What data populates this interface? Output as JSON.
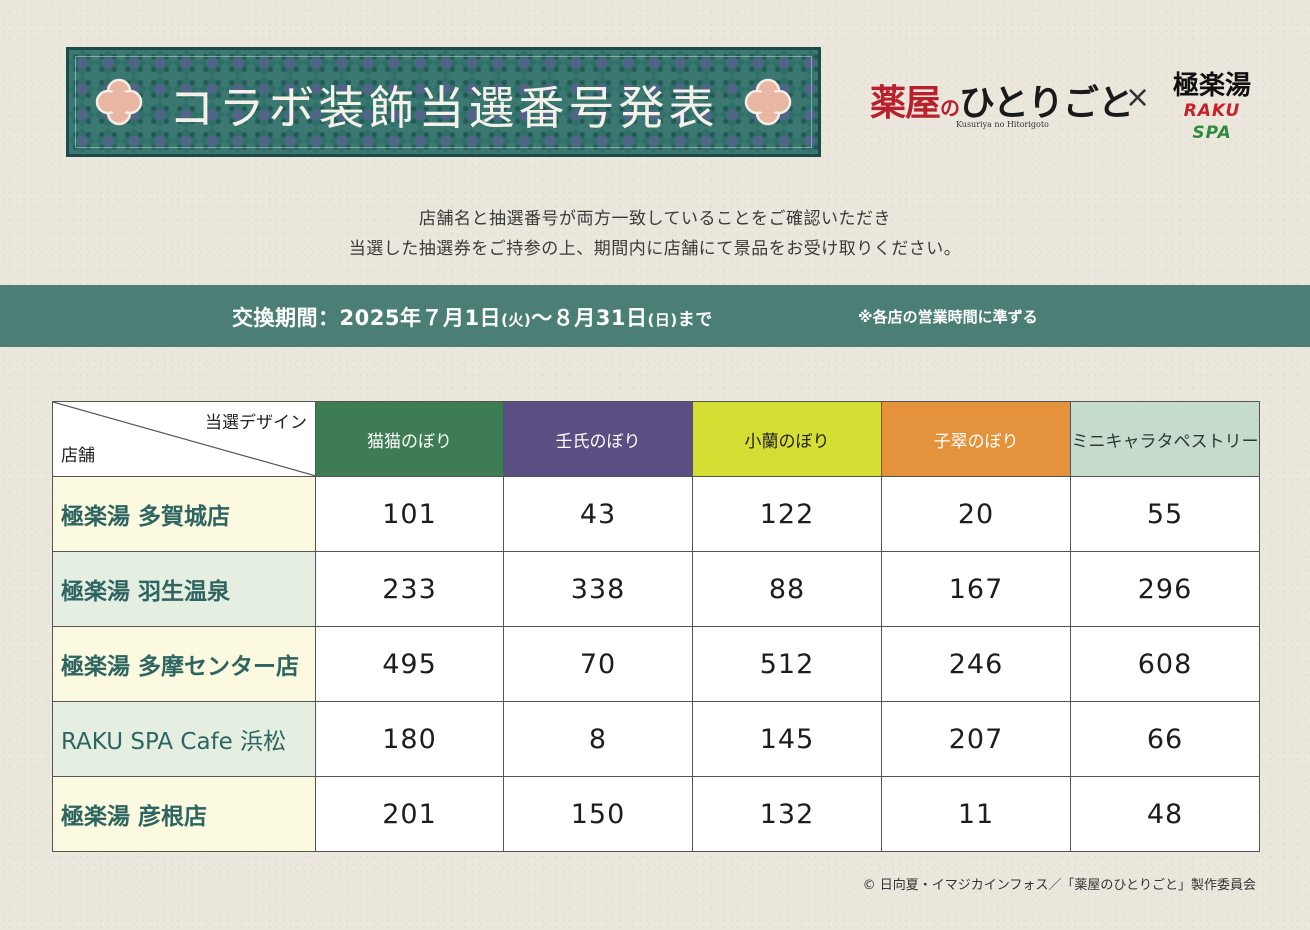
{
  "banner": {
    "title": "コラボ装飾当選番号発表"
  },
  "logos": {
    "kusuriya_title_red": "薬屋",
    "kusuriya_no": "の",
    "kusuriya_title_rest": "ひとりごと",
    "kusuriya_romaji": "Kusuriya no Hitorigoto",
    "times": "×",
    "gokurakuyu": "極楽湯",
    "raku_spa_raku": "RAKU",
    "raku_spa_spa": "SPA",
    "raku_color_red": "#c8202a",
    "raku_color_green": "#2f8a3d"
  },
  "notice": {
    "line1": "店舗名と抽選番号が両方一致していることをご確認いただき",
    "line2": "当選した抽選券をご持参の上、期間内に店舗にて景品をお受け取りください。"
  },
  "period": {
    "label": "交換期間：2025年７月1日",
    "start_day": "(火)",
    "tilde": "〜８月31日",
    "end_day": "(日)",
    "until": "まで",
    "note": "※各店の営業時間に準ずる"
  },
  "table": {
    "corner_top": "当選デザイン",
    "corner_bottom": "店舗",
    "columns": [
      "猫猫のぼり",
      "壬氏のぼり",
      "小蘭のぼり",
      "子翠のぼり",
      "ミニキャラタペストリー"
    ],
    "column_colors": [
      "#3e7d54",
      "#5a4e82",
      "#d4de33",
      "#e5923c",
      "#c5dccd"
    ],
    "rows": [
      {
        "store": "極楽湯 多賀城店",
        "values": [
          "101",
          "43",
          "122",
          "20",
          "55"
        ]
      },
      {
        "store": "極楽湯 羽生温泉",
        "values": [
          "233",
          "338",
          "88",
          "167",
          "296"
        ]
      },
      {
        "store": "極楽湯 多摩センター店",
        "values": [
          "495",
          "70",
          "512",
          "246",
          "608"
        ]
      },
      {
        "store": "RAKU SPA Cafe 浜松",
        "values": [
          "180",
          "8",
          "145",
          "207",
          "66"
        ]
      },
      {
        "store": "極楽湯 彦根店",
        "values": [
          "201",
          "150",
          "132",
          "11",
          "48"
        ]
      }
    ]
  },
  "copyright": "© 日向夏・イマジカインフォス／「薬屋のひとりごと」製作委員会"
}
